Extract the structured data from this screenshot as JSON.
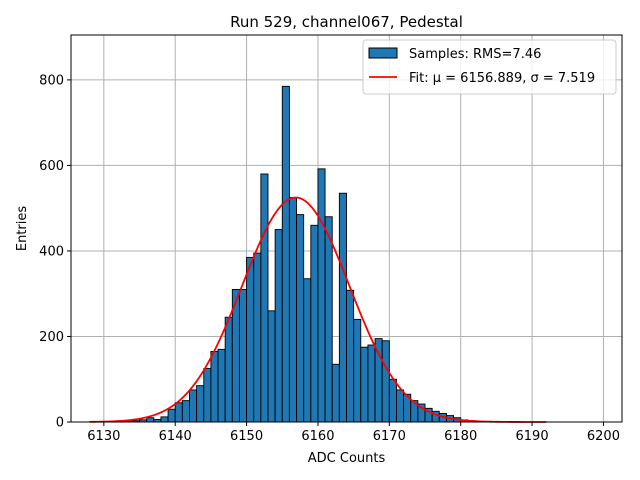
{
  "chart_data": {
    "type": "bar",
    "title": "Run 529, channel067, Pedestal",
    "xlabel": "ADC Counts",
    "ylabel": "Entries",
    "xlim": [
      6125.4,
      6202.6
    ],
    "ylim": [
      0,
      905
    ],
    "xticks": [
      6130,
      6140,
      6150,
      6160,
      6170,
      6180,
      6190,
      6200
    ],
    "yticks": [
      0,
      200,
      400,
      600,
      800
    ],
    "grid": true,
    "legend_position": "top-right",
    "bin_width": 1,
    "series": [
      {
        "name": "Samples: RMS=7.46",
        "kind": "histogram",
        "color": "#1f77b4",
        "edge_color": "#000000",
        "bin_edges": [
          6133,
          6134,
          6135,
          6136,
          6137,
          6138,
          6139,
          6140,
          6141,
          6142,
          6143,
          6144,
          6145,
          6146,
          6147,
          6148,
          6149,
          6150,
          6151,
          6152,
          6153,
          6154,
          6155,
          6156,
          6157,
          6158,
          6159,
          6160,
          6161,
          6162,
          6163,
          6164,
          6165,
          6166,
          6167,
          6168,
          6169,
          6170,
          6171,
          6172,
          6173,
          6174,
          6175,
          6176,
          6177,
          6178,
          6179,
          6180,
          6181,
          6182,
          6183,
          6184,
          6185
        ],
        "counts": [
          2,
          3,
          5,
          10,
          6,
          12,
          30,
          45,
          50,
          75,
          85,
          125,
          165,
          170,
          245,
          310,
          310,
          385,
          395,
          580,
          260,
          450,
          785,
          525,
          485,
          335,
          460,
          592,
          480,
          135,
          535,
          308,
          240,
          175,
          180,
          195,
          190,
          100,
          75,
          65,
          50,
          42,
          32,
          25,
          20,
          15,
          10,
          5,
          3,
          2,
          1,
          1
        ]
      },
      {
        "name": "Fit: μ = 6156.889, σ = 7.519",
        "kind": "gaussian-fit",
        "color": "#ff0000",
        "mu": 6156.889,
        "sigma": 7.519,
        "amplitude": 525,
        "x_range": [
          6128,
          6192
        ]
      }
    ],
    "legend": [
      {
        "label": "Samples: RMS=7.46",
        "symbol": "patch",
        "color": "#1f77b4"
      },
      {
        "label": "Fit: μ = 6156.889, σ = 7.519",
        "symbol": "line",
        "color": "#ff0000"
      }
    ]
  }
}
